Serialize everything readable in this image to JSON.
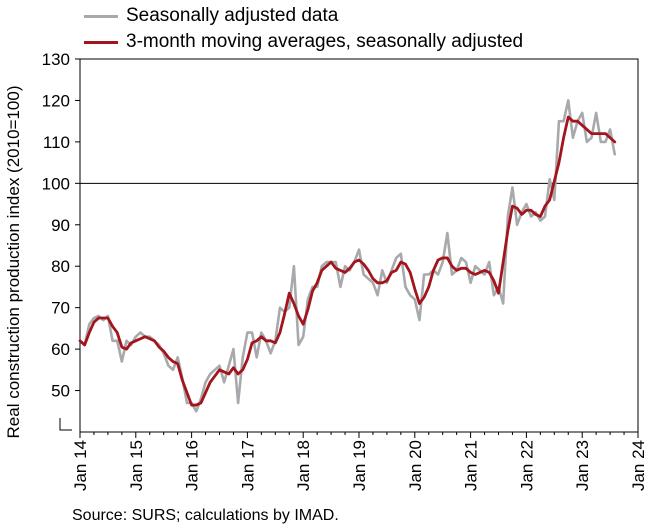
{
  "chart_data": {
    "type": "line",
    "title": "",
    "ylabel": "Real construction production index (2010=100)",
    "xlabel": "",
    "ylim": [
      40,
      130
    ],
    "yticks": [
      50,
      60,
      70,
      80,
      90,
      100,
      110,
      120,
      130
    ],
    "reference_line": 100,
    "axis_break_marker": true,
    "x_tick_labels": [
      "Jan 14",
      "Jan 15",
      "Jan 16",
      "Jan 17",
      "Jan 18",
      "Jan 19",
      "Jan 20",
      "Jan 21",
      "Jan 22",
      "Jan 23",
      "Jan 24"
    ],
    "x_start": "2014-01",
    "x_end": "2024-01",
    "grid": false,
    "legend_position": "top",
    "series": [
      {
        "name": "Seasonally adjusted data",
        "color": "#a7a9ac",
        "values": [
          62,
          61,
          66,
          67.5,
          68,
          67,
          68,
          62,
          62,
          57,
          62,
          61,
          63,
          64,
          63,
          63,
          62,
          61,
          59,
          56,
          55,
          58,
          53,
          47,
          47,
          45,
          48,
          52,
          54,
          55,
          56,
          52,
          56,
          60,
          47,
          58,
          64,
          64,
          58,
          64,
          62,
          59,
          62,
          70,
          69,
          70,
          80,
          61,
          63,
          72,
          75,
          75,
          80,
          81,
          81,
          81,
          75,
          80,
          79,
          81,
          84,
          78,
          77,
          76,
          73,
          79,
          76,
          79,
          82,
          83,
          75,
          73,
          72,
          67,
          78,
          78,
          79,
          78,
          81,
          88,
          78,
          79,
          82,
          81,
          76,
          80,
          79,
          78,
          81,
          73,
          75,
          71,
          92,
          99,
          90,
          93,
          95,
          92,
          93,
          91,
          92,
          101,
          96,
          115,
          115,
          120,
          111,
          115,
          117,
          110,
          111,
          117,
          110,
          110,
          113,
          107
        ]
      },
      {
        "name": "3-month moving averages, seasonally adjusted",
        "color": "#a3141c",
        "values": [
          62,
          61,
          64,
          66.5,
          67.5,
          67.5,
          67.5,
          65.5,
          64,
          60.5,
          60,
          61.5,
          62,
          62.5,
          63,
          62.5,
          62,
          60.5,
          59.5,
          58,
          57,
          56.5,
          52.5,
          49.5,
          46.5,
          46.5,
          47,
          49.5,
          52,
          53.5,
          55,
          54.5,
          54,
          55.5,
          54,
          55,
          57.5,
          61.5,
          62,
          63,
          62,
          62,
          61.5,
          64,
          68.5,
          73.5,
          71,
          68,
          66,
          69.5,
          74,
          76,
          79,
          80,
          81,
          79.5,
          79,
          78.5,
          79.5,
          81,
          81.5,
          80.5,
          79,
          77,
          76,
          76,
          76.5,
          78.5,
          79,
          81,
          80.5,
          78.5,
          74.5,
          71,
          72.5,
          75,
          79,
          81.5,
          82,
          82,
          80,
          79,
          79.5,
          79.5,
          78.5,
          78,
          78.5,
          79,
          78.5,
          76.5,
          73.5,
          81,
          88.5,
          94.5,
          94,
          92.5,
          93.5,
          93.5,
          92.5,
          92,
          94.5,
          96,
          100.5,
          105,
          111,
          116,
          115,
          115,
          114,
          113,
          112,
          112,
          112,
          112,
          111,
          110
        ]
      }
    ]
  },
  "source_note": "Source: SURS; calculations by IMAD."
}
